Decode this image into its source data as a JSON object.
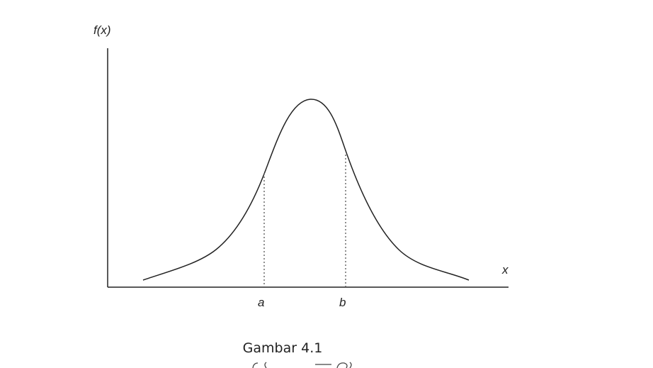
{
  "figure": {
    "y_axis_label": "f(x)",
    "x_axis_label": "x",
    "marker_a": "a",
    "marker_b": "b",
    "caption": "Gambar 4.1"
  },
  "colors": {
    "stroke": "#222222",
    "background": "#ffffff"
  }
}
